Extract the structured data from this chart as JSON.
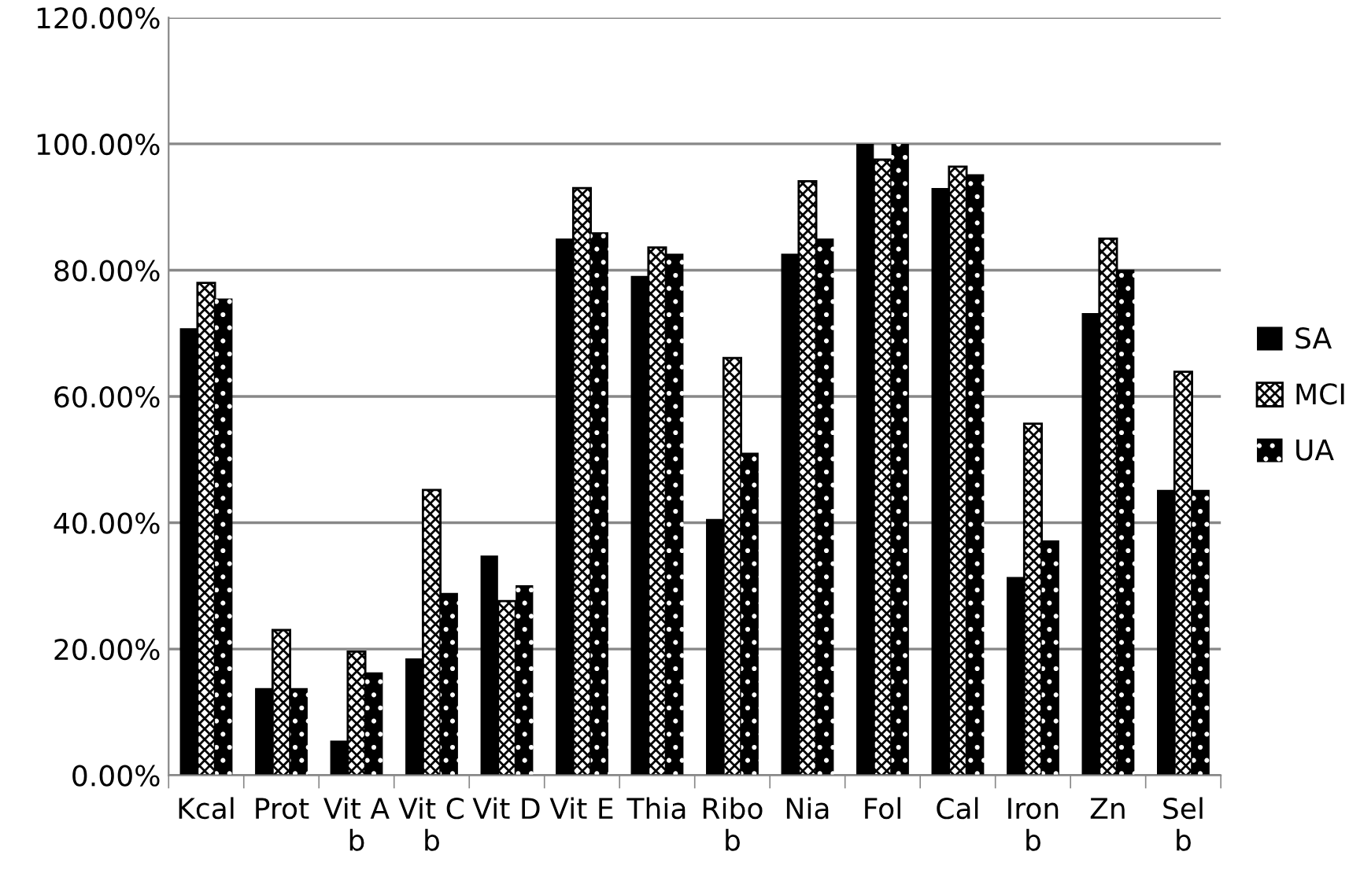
{
  "chart_data": {
    "type": "bar",
    "categories": [
      "Kcal",
      "Prot",
      "Vit A\nb",
      "Vit C\nb",
      "Vit D",
      "Vit E",
      "Thia",
      "Ribo\nb",
      "Nia",
      "Fol",
      "Cal",
      "Iron\nb",
      "Zn",
      "Sel\nb"
    ],
    "series": [
      {
        "name": "SA",
        "color": "#000000",
        "values": [
          70.8,
          13.8,
          5.5,
          18.5,
          34.8,
          85.0,
          79.1,
          40.6,
          82.6,
          100,
          93.0,
          31.4,
          73.2,
          45.2
        ]
      },
      {
        "name": "MCI",
        "color": "#000000",
        "values": [
          78.0,
          23.0,
          19.6,
          45.2,
          27.6,
          93.0,
          83.6,
          66.1,
          94.1,
          97.5,
          96.4,
          55.7,
          85.0,
          63.9
        ]
      },
      {
        "name": "UA",
        "color": "#000000",
        "values": [
          75.5,
          13.8,
          16.3,
          28.9,
          30.1,
          86.0,
          82.6,
          51.1,
          85.0,
          100,
          95.2,
          37.2,
          80.1,
          45.2
        ]
      }
    ],
    "ylim": [
      0,
      120
    ],
    "yticks": [
      {
        "value": 0,
        "label": "0.00%"
      },
      {
        "value": 20,
        "label": "20.00%"
      },
      {
        "value": 40,
        "label": "40.00%"
      },
      {
        "value": 60,
        "label": "60.00%"
      },
      {
        "value": 80,
        "label": "80.00%"
      },
      {
        "value": 100,
        "label": "100.00%"
      },
      {
        "value": 120,
        "label": "120.00%"
      }
    ],
    "grid": "y",
    "legend": "right"
  }
}
